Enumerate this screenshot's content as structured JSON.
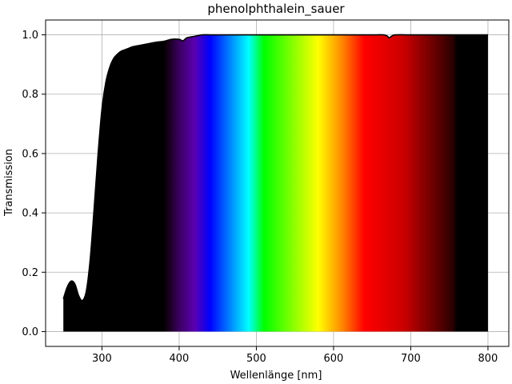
{
  "chart_data": {
    "type": "area",
    "title": "phenolphthalein_sauer",
    "xlabel": "Wellenlänge [nm]",
    "ylabel": "Transmission",
    "xlim": [
      227,
      827
    ],
    "ylim": [
      -0.05,
      1.05
    ],
    "grid": true,
    "x_ticks": [
      300,
      400,
      500,
      600,
      700,
      800
    ],
    "y_ticks": [
      0.0,
      0.2,
      0.4,
      0.6,
      0.8,
      1.0
    ],
    "x_tick_labels": [
      "300",
      "400",
      "500",
      "600",
      "700",
      "800"
    ],
    "y_tick_labels": [
      "0.0",
      "0.2",
      "0.4",
      "0.6",
      "0.8",
      "1.0"
    ],
    "series": [
      {
        "x": [
          250,
          255,
          260,
          265,
          270,
          275,
          280,
          285,
          290,
          295,
          300,
          305,
          310,
          315,
          320,
          325,
          330,
          335,
          340,
          350,
          360,
          370,
          380,
          390,
          400,
          405,
          410,
          420,
          430,
          440,
          450,
          500,
          600,
          650,
          665,
          670,
          672,
          675,
          680,
          700,
          750,
          800
        ],
        "y": [
          0.11,
          0.15,
          0.17,
          0.16,
          0.12,
          0.105,
          0.14,
          0.25,
          0.42,
          0.6,
          0.75,
          0.84,
          0.89,
          0.92,
          0.935,
          0.945,
          0.95,
          0.955,
          0.96,
          0.965,
          0.97,
          0.975,
          0.978,
          0.985,
          0.985,
          0.98,
          0.99,
          0.995,
          1.0,
          1.0,
          1.0,
          1.0,
          1.0,
          1.0,
          1.0,
          0.995,
          0.99,
          0.995,
          1.0,
          1.0,
          1.0,
          1.0
        ]
      }
    ],
    "spectrum_fill": "visible-spectrum",
    "spectrum_stops": [
      {
        "nm": 380,
        "color": "#000000"
      },
      {
        "nm": 385,
        "color": "#140014"
      },
      {
        "nm": 400,
        "color": "#3a0060"
      },
      {
        "nm": 420,
        "color": "#5a00b0"
      },
      {
        "nm": 440,
        "color": "#0000ff"
      },
      {
        "nm": 460,
        "color": "#0066ff"
      },
      {
        "nm": 490,
        "color": "#00ffff"
      },
      {
        "nm": 510,
        "color": "#00ff00"
      },
      {
        "nm": 580,
        "color": "#ffff00"
      },
      {
        "nm": 610,
        "color": "#ff8c00"
      },
      {
        "nm": 640,
        "color": "#ff0000"
      },
      {
        "nm": 690,
        "color": "#cc0000"
      },
      {
        "nm": 740,
        "color": "#500000"
      },
      {
        "nm": 755,
        "color": "#280000"
      },
      {
        "nm": 760,
        "color": "#000000"
      },
      {
        "nm": 800,
        "color": "#000000"
      }
    ],
    "colors": {
      "uv_ir_fill": "#000000",
      "outline": "#000000",
      "grid": "#b0b0b0",
      "axes": "#000000"
    }
  }
}
